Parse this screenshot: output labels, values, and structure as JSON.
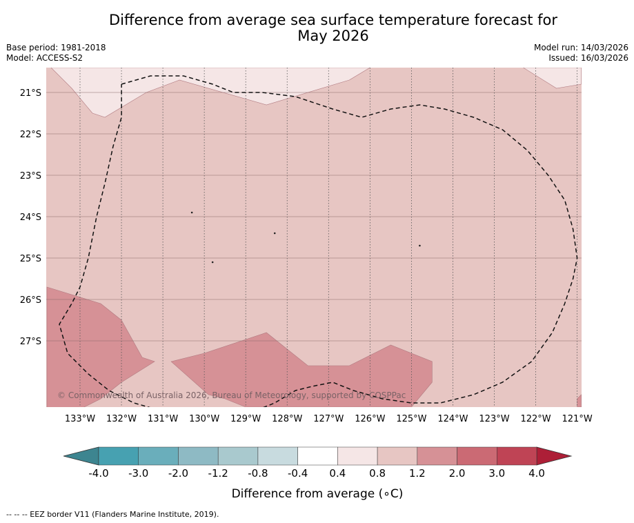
{
  "header": {
    "title_line1": "Difference from average sea surface temperature forecast for",
    "title_line2": "May 2026",
    "base_period": "Base period: 1981-2018",
    "model": "Model: ACCESS-S2",
    "model_run": "Model run: 14/03/2026",
    "issued": "Issued: 16/03/2026"
  },
  "chart_data": {
    "type": "heatmap",
    "title": "Difference from average sea surface temperature forecast for May 2026",
    "x_ticks": [
      "133°W",
      "132°W",
      "131°W",
      "130°W",
      "129°W",
      "128°W",
      "127°W",
      "126°W",
      "125°W",
      "124°W",
      "123°W",
      "122°W",
      "121°W"
    ],
    "y_ticks": [
      "21°S",
      "22°S",
      "23°S",
      "24°S",
      "25°S",
      "26°S",
      "27°S"
    ],
    "xlim_deg_west": [
      133.8,
      120.9
    ],
    "ylim_deg_south": [
      28.6,
      20.4
    ],
    "regions": [
      {
        "name": "anomaly-0.4-to-0.8-north",
        "category": "0.4 to 0.8",
        "points": [
          [
            133.7,
            20.4
          ],
          [
            133.2,
            20.9
          ],
          [
            132.7,
            21.5
          ],
          [
            132.4,
            21.6
          ],
          [
            131.4,
            21.0
          ],
          [
            130.6,
            20.7
          ],
          [
            128.5,
            21.3
          ],
          [
            126.5,
            20.7
          ],
          [
            126.0,
            20.4
          ]
        ]
      },
      {
        "name": "anomaly-0.4-to-0.8-northeast",
        "category": "0.4 to 0.8",
        "points": [
          [
            122.3,
            20.4
          ],
          [
            121.5,
            20.9
          ],
          [
            120.9,
            20.8
          ],
          [
            120.9,
            20.4
          ]
        ]
      },
      {
        "name": "anomaly-1.2-to-2.0-west",
        "category": "1.2 to 2.0",
        "points": [
          [
            133.8,
            25.7
          ],
          [
            132.5,
            26.1
          ],
          [
            132.0,
            26.5
          ],
          [
            131.5,
            27.4
          ],
          [
            131.2,
            27.5
          ],
          [
            132.0,
            28.0
          ],
          [
            132.5,
            28.4
          ],
          [
            133.5,
            28.9
          ],
          [
            133.8,
            28.8
          ]
        ]
      },
      {
        "name": "anomaly-1.2-to-2.0-south",
        "category": "1.2 to 2.0",
        "points": [
          [
            130.8,
            27.5
          ],
          [
            130.0,
            27.3
          ],
          [
            128.5,
            26.8
          ],
          [
            127.5,
            27.6
          ],
          [
            126.5,
            27.6
          ],
          [
            125.5,
            27.1
          ],
          [
            124.5,
            27.5
          ],
          [
            124.5,
            28.0
          ],
          [
            125.0,
            28.6
          ],
          [
            129.0,
            28.6
          ],
          [
            129.5,
            28.4
          ],
          [
            129.9,
            28.3
          ]
        ]
      },
      {
        "name": "anomaly-1.2-to-2.0-southeast",
        "category": "1.2 to 2.0",
        "points": [
          [
            121.0,
            28.4
          ],
          [
            120.9,
            28.3
          ],
          [
            120.9,
            28.6
          ],
          [
            121.0,
            28.6
          ]
        ]
      }
    ],
    "background_category": "0.8 to 1.2",
    "eez_border": [
      [
        132.0,
        20.8
      ],
      [
        131.3,
        20.6
      ],
      [
        130.5,
        20.6
      ],
      [
        129.8,
        20.8
      ],
      [
        129.3,
        21.0
      ],
      [
        128.6,
        21.0
      ],
      [
        127.8,
        21.1
      ],
      [
        126.9,
        21.4
      ],
      [
        126.2,
        21.6
      ],
      [
        125.5,
        21.4
      ],
      [
        124.8,
        21.3
      ],
      [
        124.2,
        21.4
      ],
      [
        123.5,
        21.6
      ],
      [
        122.8,
        21.9
      ],
      [
        122.2,
        22.4
      ],
      [
        121.7,
        23.0
      ],
      [
        121.3,
        23.6
      ],
      [
        121.1,
        24.3
      ],
      [
        121.0,
        25.0
      ],
      [
        121.1,
        25.5
      ],
      [
        121.3,
        26.1
      ],
      [
        121.6,
        26.8
      ],
      [
        122.1,
        27.5
      ],
      [
        122.8,
        28.0
      ],
      [
        123.5,
        28.3
      ],
      [
        124.3,
        28.5
      ],
      [
        125.0,
        28.5
      ],
      [
        125.7,
        28.4
      ],
      [
        126.4,
        28.2
      ],
      [
        126.9,
        28.0
      ],
      [
        127.4,
        28.1
      ],
      [
        127.8,
        28.2
      ],
      [
        128.3,
        28.5
      ],
      [
        128.8,
        28.7
      ],
      [
        129.5,
        28.8
      ],
      [
        130.2,
        28.8
      ],
      [
        131.0,
        28.7
      ],
      [
        131.7,
        28.5
      ],
      [
        132.3,
        28.2
      ],
      [
        132.8,
        27.8
      ],
      [
        133.3,
        27.3
      ],
      [
        133.5,
        26.6
      ],
      [
        133.2,
        26.1
      ],
      [
        133.0,
        25.7
      ],
      [
        132.8,
        25.0
      ],
      [
        132.6,
        24.0
      ],
      [
        132.4,
        23.2
      ],
      [
        132.2,
        22.3
      ],
      [
        132.0,
        21.6
      ],
      [
        132.0,
        20.8
      ]
    ],
    "islands": [
      {
        "name": "island-small-a",
        "lon": 130.3,
        "lat": 23.9
      },
      {
        "name": "island-small-b",
        "lon": 128.3,
        "lat": 24.4
      },
      {
        "name": "island-small-c",
        "lon": 129.8,
        "lat": 25.1
      },
      {
        "name": "island-small-d",
        "lon": 124.8,
        "lat": 24.7
      }
    ],
    "colorbar": {
      "label": "Difference from average (∘C)",
      "tick_labels": [
        "-4.0",
        "-3.0",
        "-2.0",
        "-1.2",
        "-0.8",
        "-0.4",
        "0.4",
        "0.8",
        "1.2",
        "2.0",
        "3.0",
        "4.0"
      ],
      "colors": [
        "#47a1b1",
        "#6aaebb",
        "#8ebac4",
        "#a9c9ce",
        "#c8dbdf",
        "#ffffff",
        "#f5e6e6",
        "#e7c6c3",
        "#d69196",
        "#cb6a74",
        "#bf4455"
      ],
      "extend_low_color": "#3d8590",
      "extend_high_color": "#ad1f37"
    },
    "watermark": "© Commonwealth of Australia 2026, Bureau of Meteorology, supported by COSPPac"
  },
  "footnote": "--  --  -- EEZ border V11 (Flanders Marine Institute, 2019)."
}
